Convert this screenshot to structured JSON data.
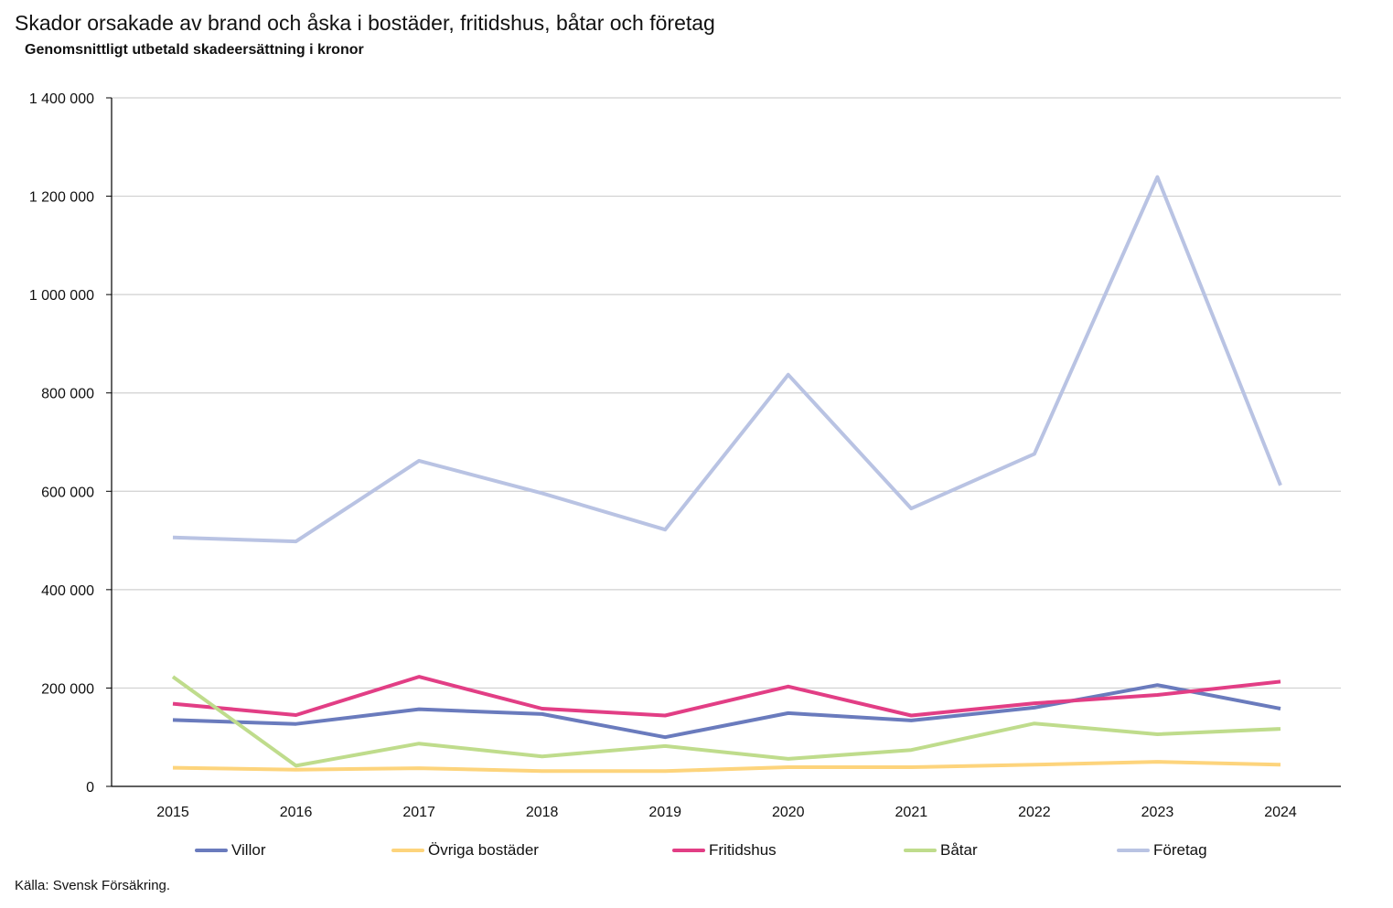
{
  "title": "Skador orsakade av brand och åska i bostäder, fritidshus, båtar och företag",
  "subtitle": "Genomsnittligt utbetald skadeersättning i kronor",
  "source": "Källa: Svensk Försäkring.",
  "chart_data": {
    "type": "line",
    "title": "Skador orsakade av brand och åska i bostäder, fritidshus, båtar och företag",
    "subtitle": "Genomsnittligt utbetald skadeersättning i kronor",
    "categories": [
      "2015",
      "2016",
      "2017",
      "2018",
      "2019",
      "2020",
      "2021",
      "2022",
      "2023",
      "2024"
    ],
    "ylim": [
      0,
      1400000
    ],
    "yticks": [
      0,
      200000,
      400000,
      600000,
      800000,
      1000000,
      1200000,
      1400000
    ],
    "ytick_labels": [
      "0",
      "200 000",
      "400 000",
      "600 000",
      "800 000",
      "1 000 000",
      "1 200 000",
      "1 400 000"
    ],
    "grid": true,
    "legend_position": "bottom",
    "series": [
      {
        "name": "Villor",
        "color": "#6a7bbd",
        "values": [
          135000,
          127000,
          157000,
          147000,
          100000,
          149000,
          134000,
          160000,
          206000,
          158000
        ]
      },
      {
        "name": "Övriga bostäder",
        "color": "#fdd47c",
        "values": [
          38000,
          34000,
          37000,
          31000,
          31000,
          39000,
          39000,
          44000,
          50000,
          44000
        ]
      },
      {
        "name": "Fritidshus",
        "color": "#e23e85",
        "values": [
          168000,
          145000,
          223000,
          158000,
          144000,
          203000,
          144000,
          169000,
          186000,
          213000
        ]
      },
      {
        "name": "Båtar",
        "color": "#bfdc8c",
        "values": [
          223000,
          42000,
          87000,
          61000,
          82000,
          56000,
          74000,
          128000,
          106000,
          117000
        ]
      },
      {
        "name": "Företag",
        "color": "#b9c3e3",
        "values": [
          506000,
          498000,
          662000,
          596000,
          522000,
          837000,
          565000,
          676000,
          1239000,
          612000
        ]
      }
    ]
  }
}
